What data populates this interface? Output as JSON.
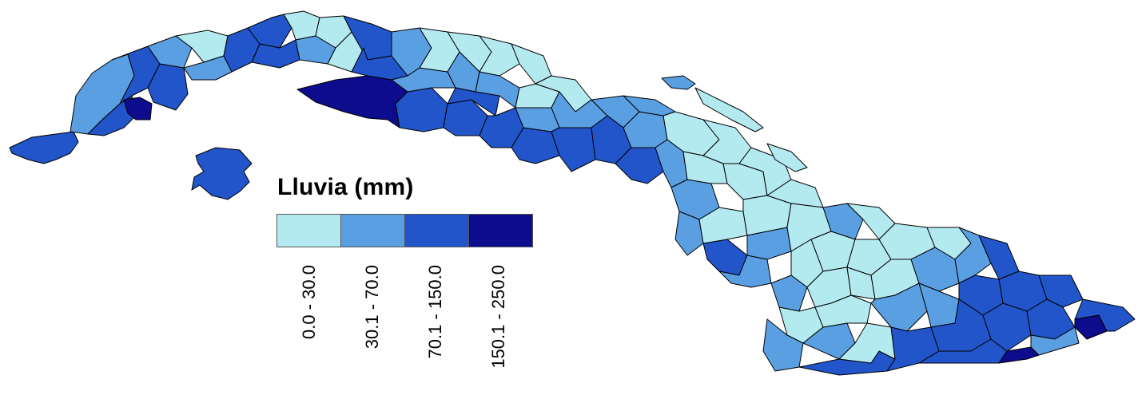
{
  "legend": {
    "title": "Lluvia (mm)",
    "classes": [
      {
        "label": "0.0 - 30.0",
        "color": "#b3eaf0"
      },
      {
        "label": "30.1 - 70.0",
        "color": "#5b9fe3"
      },
      {
        "label": "70.1 - 150.0",
        "color": "#2155c9"
      },
      {
        "label": "150.1 - 250.0",
        "color": "#0c0c8c"
      }
    ]
  },
  "map": {
    "region": "Cuba",
    "border_color": "#000000"
  }
}
